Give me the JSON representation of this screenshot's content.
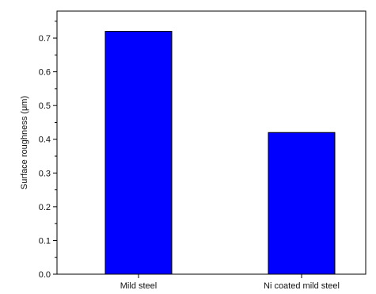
{
  "chart_data": {
    "type": "bar",
    "categories": [
      "Mild steel",
      "Ni coated mild steel"
    ],
    "values": [
      0.72,
      0.42
    ],
    "title": "",
    "xlabel": "",
    "ylabel": "Surface roughness (μm)",
    "ylim": [
      0,
      0.78
    ],
    "yticks": [
      "0.0",
      "0.1",
      "0.2",
      "0.3",
      "0.4",
      "0.5",
      "0.6",
      "0.7"
    ],
    "grid": false,
    "legend": "none",
    "bar_color": "#0000ff",
    "bar_edge_color": "#000000"
  }
}
